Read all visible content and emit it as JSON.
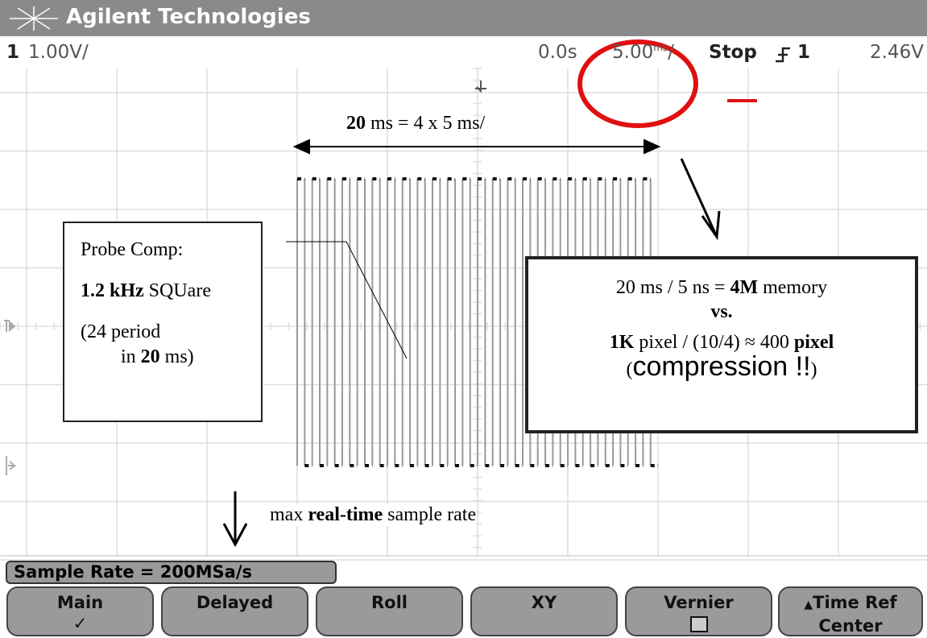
{
  "header": {
    "brand": "Agilent Technologies"
  },
  "status": {
    "channel": "1",
    "scale": "1.00V/",
    "delay": "0.0s",
    "timebase": "5.00",
    "timebase_unit": "ms",
    "timebase_suffix": "/",
    "run_state": "Stop",
    "trigger_source": "1",
    "trigger_level": "2.46V"
  },
  "annotations": {
    "span": [
      "20",
      " ms = 4 x 5 ms/"
    ],
    "probe_box": {
      "line1": "Probe Comp:",
      "line2": [
        "1.2 kHz",
        " SQUare"
      ],
      "line3": "(24 period",
      "line4": [
        "in ",
        "20",
        " ms)"
      ]
    },
    "memory_box": {
      "line1": [
        "20 ms / 5 ns = ",
        "4M",
        " memory"
      ],
      "line2": "vs.",
      "line3": [
        "1K",
        " pixel / (10/4) ≈ 400 ",
        "pixel"
      ],
      "line4": [
        "(",
        "compression !!",
        ")"
      ]
    },
    "note": [
      "max ",
      "real-time",
      " sample rate"
    ]
  },
  "sample_rate": "Sample Rate = 200MSa/s",
  "softkeys": [
    {
      "label": "Main",
      "indicator": "✓"
    },
    {
      "label": "Delayed"
    },
    {
      "label": "Roll"
    },
    {
      "label": "XY"
    },
    {
      "label": "Vernier"
    },
    {
      "label": "Time Ref",
      "sublabel": "Center"
    }
  ]
}
